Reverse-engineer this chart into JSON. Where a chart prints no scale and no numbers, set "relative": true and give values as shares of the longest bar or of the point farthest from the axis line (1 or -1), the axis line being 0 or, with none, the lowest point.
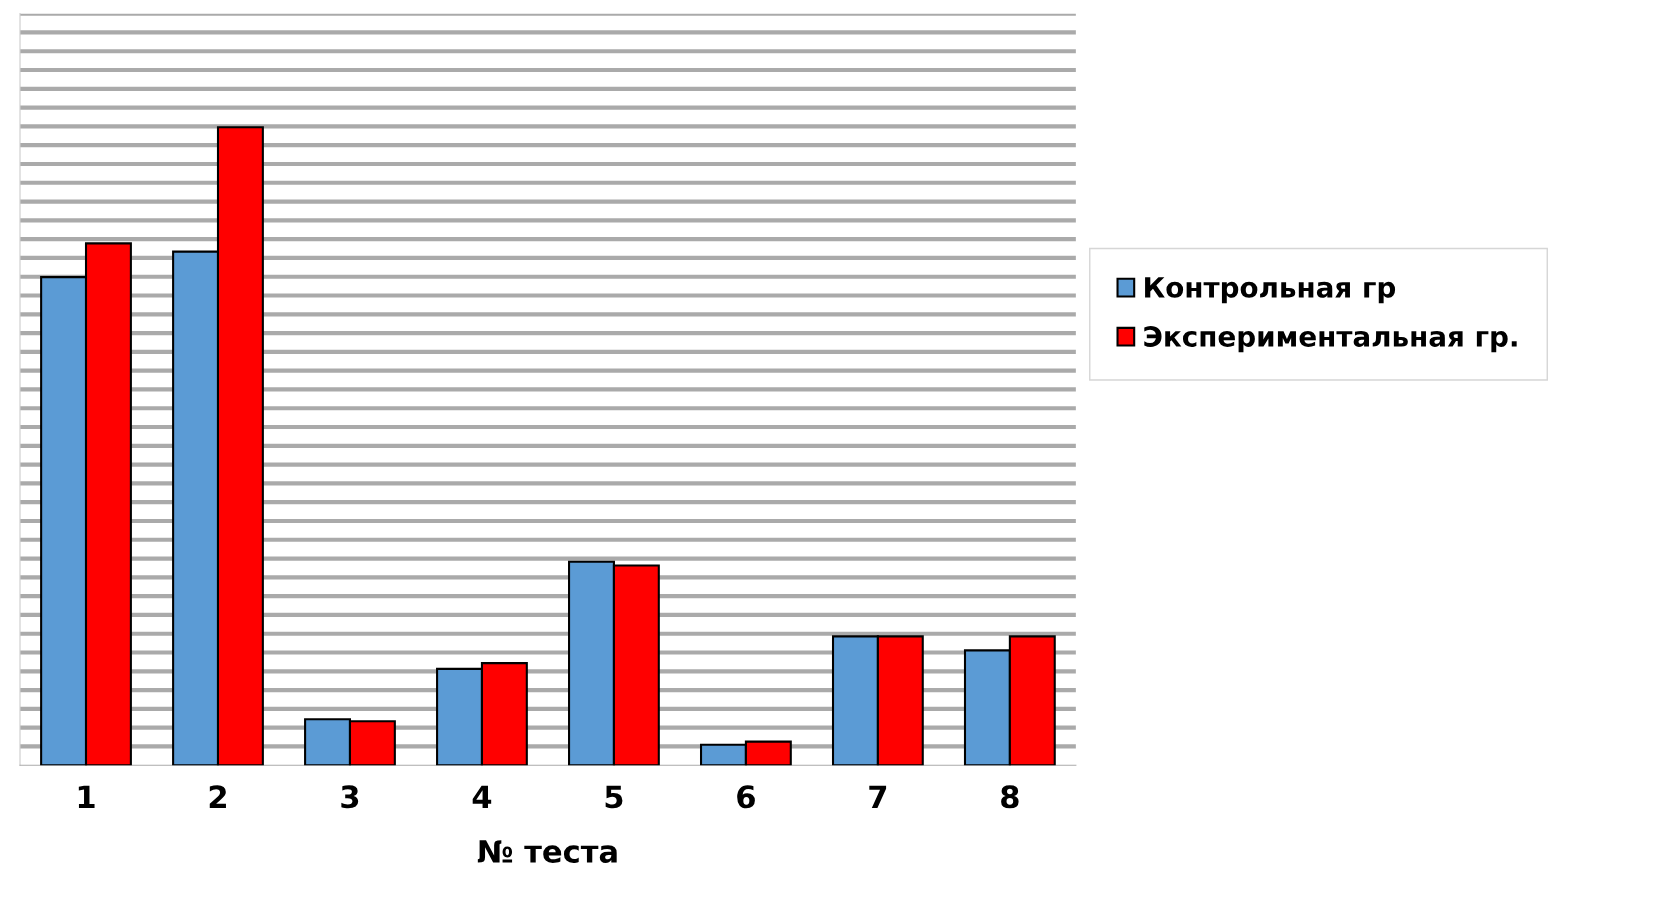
{
  "chart_data": {
    "type": "bar",
    "xlabel": "№ теста",
    "relative": true,
    "grid": "y",
    "legend": "right",
    "categories": [
      "1",
      "2",
      "3",
      "4",
      "5",
      "6",
      "7",
      "8"
    ],
    "series": [
      {
        "name": "Контрольная гр",
        "color": "#5b9bd5",
        "values": [
          0.765,
          0.805,
          0.072,
          0.151,
          0.319,
          0.032,
          0.202,
          0.18
        ]
      },
      {
        "name": "Экспериментальная гр.",
        "color": "#ff0000",
        "values": [
          0.818,
          1,
          0.069,
          0.16,
          0.313,
          0.037,
          0.202,
          0.202
        ]
      }
    ]
  }
}
